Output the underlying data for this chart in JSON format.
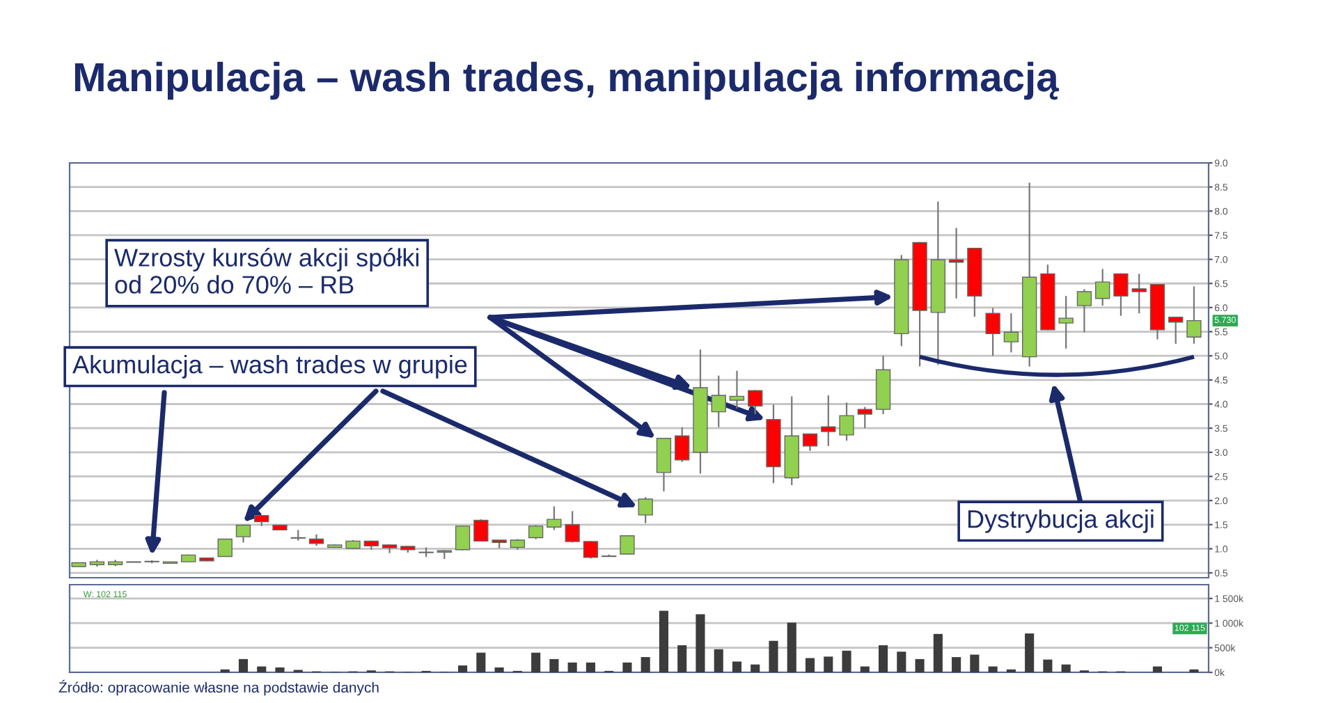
{
  "chart_data": [
    {
      "type": "candlestick",
      "title": "Manipulacja – wash trades, manipulacja informacją",
      "categories": [
        null,
        null,
        null,
        null,
        null,
        null,
        null,
        null,
        null,
        null,
        null,
        null,
        null,
        null,
        null,
        null,
        null,
        null,
        null,
        null,
        null,
        null,
        null,
        null,
        null,
        null,
        null,
        null,
        null,
        null,
        null,
        null,
        null,
        null,
        null,
        null,
        null,
        null,
        null,
        null,
        null,
        null,
        null,
        null,
        null,
        null,
        null,
        null,
        null,
        null,
        null,
        null,
        null,
        null,
        null,
        null,
        null,
        null,
        null,
        null,
        null,
        null
      ],
      "ohlc": [
        [
          0.63,
          0.71,
          0.63,
          0.71
        ],
        [
          0.67,
          0.77,
          0.63,
          0.73
        ],
        [
          0.67,
          0.77,
          0.64,
          0.73
        ],
        [
          0.72,
          0.73,
          0.72,
          0.73
        ],
        [
          0.73,
          0.76,
          0.7,
          0.74
        ],
        [
          0.7,
          0.73,
          0.7,
          0.73
        ],
        [
          0.73,
          0.88,
          0.73,
          0.87
        ],
        [
          0.81,
          0.82,
          0.74,
          0.75
        ],
        [
          0.84,
          1.2,
          0.84,
          1.2
        ],
        [
          1.25,
          1.5,
          1.13,
          1.49
        ],
        [
          1.69,
          1.7,
          1.47,
          1.56
        ],
        [
          1.49,
          1.49,
          1.39,
          1.39
        ],
        [
          1.23,
          1.39,
          1.17,
          1.22
        ],
        [
          1.2,
          1.3,
          1.06,
          1.11
        ],
        [
          1.03,
          1.09,
          1.02,
          1.08
        ],
        [
          1.01,
          1.18,
          1.0,
          1.16
        ],
        [
          1.16,
          1.17,
          0.98,
          1.06
        ],
        [
          1.08,
          1.09,
          0.91,
          1.02
        ],
        [
          1.05,
          1.06,
          0.92,
          0.98
        ],
        [
          0.93,
          1.03,
          0.83,
          0.92
        ],
        [
          0.93,
          0.97,
          0.79,
          0.96
        ],
        [
          0.98,
          1.48,
          0.97,
          1.47
        ],
        [
          1.59,
          1.61,
          1.15,
          1.16
        ],
        [
          1.18,
          1.18,
          1.01,
          1.13
        ],
        [
          1.03,
          1.2,
          0.98,
          1.18
        ],
        [
          1.23,
          1.49,
          1.2,
          1.47
        ],
        [
          1.45,
          1.88,
          1.39,
          1.61
        ],
        [
          1.5,
          1.78,
          1.13,
          1.15
        ],
        [
          1.15,
          1.16,
          0.8,
          0.82
        ],
        [
          0.85,
          0.88,
          0.84,
          0.84
        ],
        [
          0.89,
          1.28,
          0.88,
          1.27
        ],
        [
          1.7,
          2.07,
          1.53,
          2.03
        ],
        [
          2.58,
          3.3,
          2.19,
          3.29
        ],
        [
          3.34,
          3.52,
          2.8,
          2.84
        ],
        [
          3.0,
          5.13,
          2.56,
          4.34
        ],
        [
          3.84,
          4.59,
          3.52,
          4.18
        ],
        [
          4.08,
          4.69,
          3.91,
          4.16
        ],
        [
          4.28,
          4.29,
          3.79,
          3.96
        ],
        [
          3.68,
          3.99,
          2.36,
          2.7
        ],
        [
          2.47,
          4.16,
          2.32,
          3.34
        ],
        [
          3.38,
          3.39,
          3.03,
          3.13
        ],
        [
          3.53,
          4.18,
          3.13,
          3.43
        ],
        [
          3.36,
          4.03,
          3.24,
          3.76
        ],
        [
          3.89,
          3.94,
          3.5,
          3.79
        ],
        [
          3.89,
          5.0,
          3.79,
          4.71
        ],
        [
          5.46,
          7.09,
          5.2,
          6.99
        ],
        [
          7.35,
          7.36,
          4.78,
          5.94
        ],
        [
          5.9,
          8.2,
          4.81,
          6.99
        ],
        [
          6.99,
          7.65,
          6.19,
          6.94
        ],
        [
          7.23,
          7.24,
          5.81,
          6.24
        ],
        [
          5.88,
          5.99,
          5.0,
          5.46
        ],
        [
          5.29,
          5.88,
          5.07,
          5.49
        ],
        [
          4.98,
          8.59,
          4.78,
          6.63
        ],
        [
          6.7,
          6.89,
          5.53,
          5.54
        ],
        [
          5.68,
          6.24,
          5.15,
          5.78
        ],
        [
          6.04,
          6.38,
          5.49,
          6.33
        ],
        [
          6.19,
          6.8,
          6.04,
          6.53
        ],
        [
          6.7,
          6.71,
          5.83,
          6.24
        ],
        [
          6.39,
          6.7,
          5.88,
          6.33
        ],
        [
          6.48,
          6.49,
          5.34,
          5.54
        ],
        [
          5.8,
          5.81,
          5.25,
          5.7
        ],
        [
          5.39,
          6.44,
          5.25,
          5.73
        ]
      ],
      "colors": [
        "#92d050",
        "#92d050",
        "#92d050",
        "#92d050",
        "#92d050",
        "#92d050",
        "#92d050",
        "#ff0000",
        "#92d050",
        "#92d050",
        "#ff0000",
        "#ff0000",
        "#ff0000",
        "#ff0000",
        "#92d050",
        "#92d050",
        "#ff0000",
        "#ff0000",
        "#ff0000",
        "#ff0000",
        "#92d050",
        "#92d050",
        "#ff0000",
        "#ff0000",
        "#92d050",
        "#92d050",
        "#92d050",
        "#ff0000",
        "#ff0000",
        "#ff0000",
        "#92d050",
        "#92d050",
        "#92d050",
        "#ff0000",
        "#92d050",
        "#92d050",
        "#92d050",
        "#ff0000",
        "#ff0000",
        "#92d050",
        "#ff0000",
        "#ff0000",
        "#92d050",
        "#ff0000",
        "#92d050",
        "#92d050",
        "#ff0000",
        "#92d050",
        "#ff0000",
        "#ff0000",
        "#ff0000",
        "#92d050",
        "#92d050",
        "#ff0000",
        "#92d050",
        "#92d050",
        "#92d050",
        "#ff0000",
        "#ff0000",
        "#ff0000",
        "#ff0000",
        "#92d050"
      ],
      "ylim": [
        0.4,
        9.0
      ],
      "yticks": [
        0.5,
        {
          "value": 1,
          "label": "1.0"
        },
        1.5,
        {
          "value": 2,
          "label": "2.0"
        },
        2.5,
        {
          "value": 3,
          "label": "3.0"
        },
        3.5,
        {
          "value": 4,
          "label": "4.0"
        },
        4.5,
        {
          "value": 5,
          "label": "5.0"
        },
        5.5,
        {
          "value": 6,
          "label": "6.0"
        },
        6.5,
        {
          "value": 7,
          "label": "7.0"
        },
        7.5,
        {
          "value": 8,
          "label": "8.0"
        },
        8.5,
        {
          "value": 9,
          "label": "9.0"
        }
      ],
      "grid": "y",
      "tick_labels": "y",
      "annotations": [
        "Wzrosty kursów akcji spółki\nod 20% do 70% – RB",
        "Akumulacja – wash trades w grupie",
        "Dystrybucja akcji",
        {
          "text": "5.730",
          "y": 5.73
        }
      ]
    },
    {
      "type": "bar",
      "categories": [
        null,
        null,
        null,
        null,
        null,
        null,
        null,
        null,
        null,
        null,
        null,
        null,
        null,
        null,
        null,
        null,
        null,
        null,
        null,
        null,
        null,
        null,
        null,
        null,
        null,
        null,
        null,
        null,
        null,
        null,
        null,
        null,
        null,
        null,
        null,
        null,
        null,
        null,
        null,
        null,
        null,
        null,
        null,
        null,
        null,
        null,
        null,
        null,
        null,
        null,
        null,
        null,
        null,
        null,
        null,
        null,
        null,
        null,
        null,
        null,
        null,
        null
      ],
      "values": [
        0,
        0,
        0,
        0,
        0,
        0,
        0,
        0,
        60,
        270,
        120,
        100,
        50,
        20,
        10,
        20,
        40,
        20,
        10,
        30,
        10,
        140,
        400,
        100,
        30,
        400,
        270,
        200,
        200,
        30,
        200,
        310,
        1250,
        550,
        1180,
        470,
        220,
        160,
        640,
        1010,
        290,
        320,
        440,
        120,
        550,
        420,
        270,
        780,
        310,
        360,
        120,
        60,
        790,
        260,
        160,
        40,
        20,
        20,
        0,
        120,
        0,
        60
      ],
      "color": "#3c3c3c",
      "ylim": [
        0,
        1780
      ],
      "yticks": [
        {
          "value": 0,
          "label": "0k"
        },
        {
          "value": 500,
          "label": "500k"
        },
        {
          "value": 1000,
          "label": "1 000k"
        },
        {
          "value": 1500,
          "label": "1 500k"
        }
      ],
      "grid": "y",
      "tick_labels": "y",
      "annotations": [
        "W: 102 115",
        "102 115",
        "Źródło: opracowanie własne na podstawie danych"
      ]
    }
  ]
}
